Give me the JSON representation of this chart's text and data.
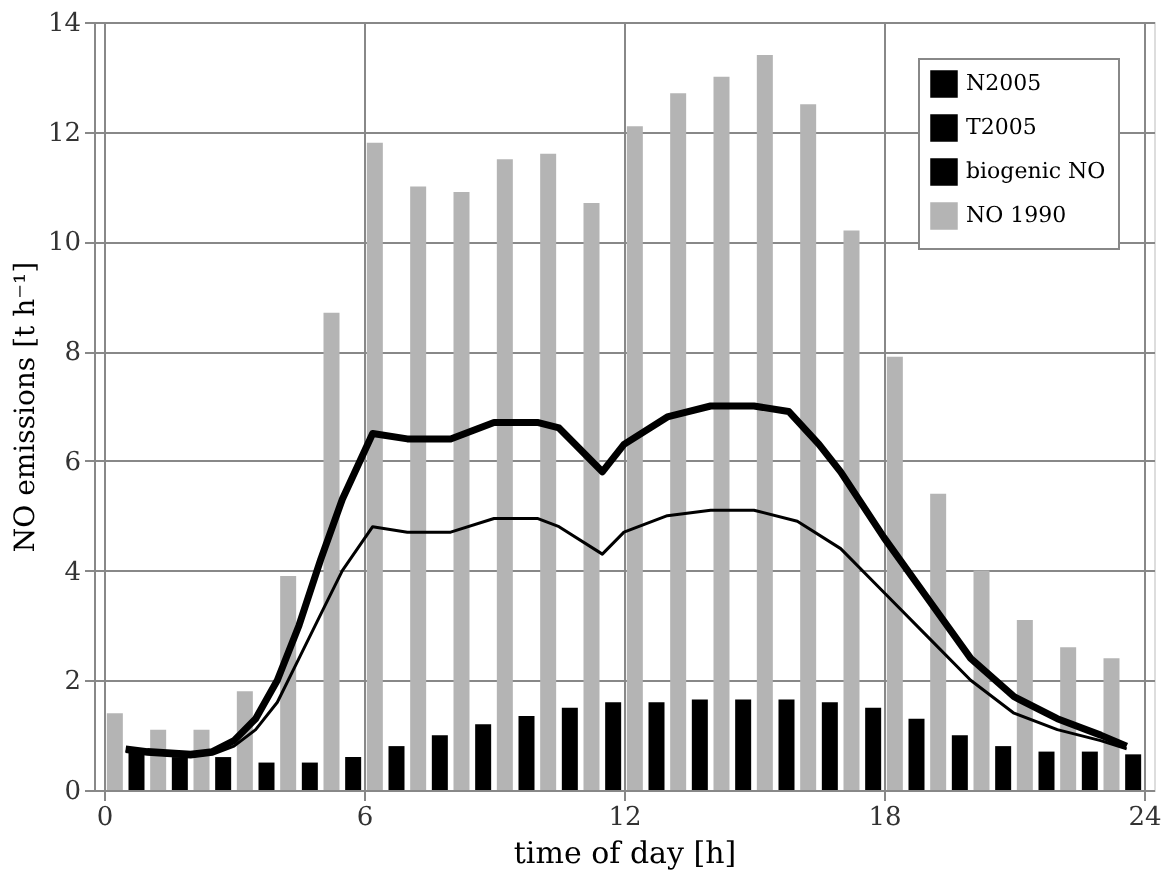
{
  "chart_data": {
    "type": "bar",
    "xlabel": "time  of day [h]",
    "ylabel": "NO emissions  [t h⁻¹]",
    "xlim": [
      0,
      24
    ],
    "xticks": [
      0,
      6,
      12,
      18,
      24
    ],
    "ylim": [
      0,
      14
    ],
    "yticks": [
      0,
      2,
      4,
      6,
      8,
      10,
      12,
      14
    ],
    "grid": true,
    "legend": "top right",
    "series": [
      {
        "name": "N2005",
        "type": "line",
        "color": "#000000",
        "x": [
          0.5,
          1,
          2,
          2.5,
          3,
          3.5,
          4,
          4.5,
          5,
          5.5,
          6.2,
          7,
          8,
          9,
          10,
          10.5,
          11.5,
          12,
          13,
          14,
          15,
          16,
          17,
          18,
          19,
          20,
          21,
          22,
          23,
          23.6
        ],
        "values": [
          0.7,
          0.65,
          0.6,
          0.65,
          0.8,
          1.1,
          1.6,
          2.4,
          3.2,
          4.0,
          4.8,
          4.7,
          4.7,
          4.95,
          4.95,
          4.8,
          4.3,
          4.7,
          5.0,
          5.1,
          5.1,
          4.9,
          4.4,
          3.6,
          2.8,
          2.0,
          1.4,
          1.1,
          0.9,
          0.75
        ]
      },
      {
        "name": "T2005",
        "type": "line",
        "color": "#000000",
        "x": [
          0.5,
          1,
          2,
          2.5,
          3,
          3.5,
          4,
          4.5,
          5,
          5.5,
          6.2,
          7,
          8,
          9,
          10,
          10.5,
          11.5,
          12,
          13,
          14,
          15,
          15.8,
          16.5,
          17,
          18,
          19,
          20,
          21,
          22,
          23,
          23.6
        ],
        "values": [
          0.75,
          0.7,
          0.65,
          0.7,
          0.9,
          1.3,
          2.0,
          3.0,
          4.2,
          5.3,
          6.5,
          6.4,
          6.4,
          6.7,
          6.7,
          6.6,
          5.8,
          6.3,
          6.8,
          7.0,
          7.0,
          6.9,
          6.3,
          5.8,
          4.6,
          3.5,
          2.4,
          1.7,
          1.3,
          1.0,
          0.8
        ]
      },
      {
        "name": "biogenic NO",
        "color": "#000000",
        "x": [
          0.75,
          1.75,
          2.75,
          3.75,
          4.75,
          5.75,
          6.75,
          7.75,
          8.75,
          9.75,
          10.75,
          11.75,
          12.75,
          13.75,
          14.75,
          15.75,
          16.75,
          17.75,
          18.75,
          19.75,
          20.75,
          21.75,
          22.75,
          23.75
        ],
        "values": [
          0.7,
          0.6,
          0.6,
          0.5,
          0.5,
          0.6,
          0.8,
          1.0,
          1.2,
          1.35,
          1.5,
          1.6,
          1.6,
          1.65,
          1.65,
          1.65,
          1.6,
          1.5,
          1.3,
          1.0,
          0.8,
          0.7,
          0.7,
          0.65
        ]
      },
      {
        "name": "NO 1990",
        "color": "#b4b4b4",
        "x": [
          0.25,
          1.25,
          2.25,
          3.25,
          4.25,
          5.25,
          6.25,
          7.25,
          8.25,
          9.25,
          10.25,
          11.25,
          12.25,
          13.25,
          14.25,
          15.25,
          16.25,
          17.25,
          18.25,
          19.25,
          20.25,
          21.25,
          22.25,
          23.25
        ],
        "values": [
          1.4,
          1.1,
          1.1,
          1.8,
          3.9,
          8.7,
          11.8,
          11.0,
          10.9,
          11.5,
          11.6,
          10.7,
          12.1,
          12.7,
          13.0,
          13.4,
          12.5,
          10.2,
          7.9,
          5.4,
          4.0,
          3.1,
          2.6,
          2.4
        ]
      }
    ]
  }
}
